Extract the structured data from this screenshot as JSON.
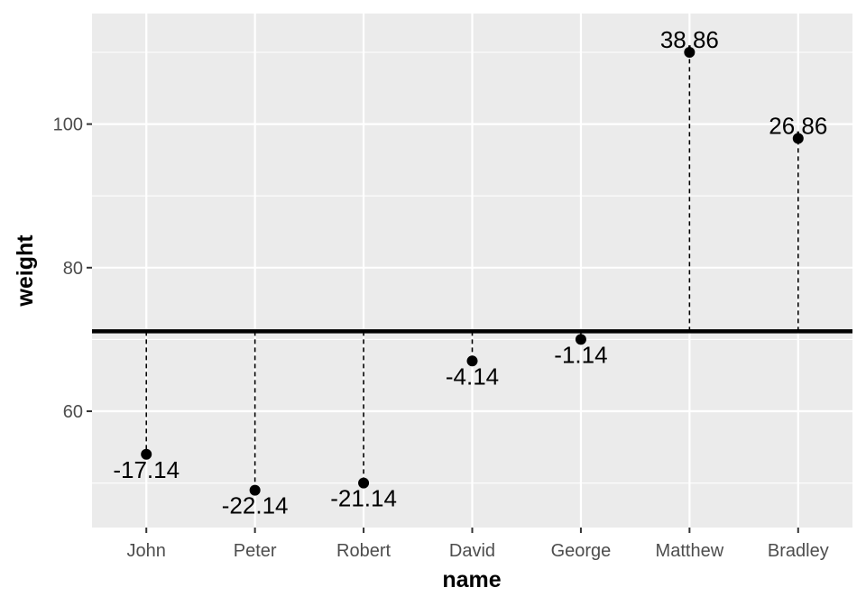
{
  "chart_data": {
    "type": "scatter",
    "subtype": "lollipop-deviation",
    "xlabel": "name",
    "ylabel": "weight",
    "categories": [
      "John",
      "Peter",
      "Robert",
      "David",
      "George",
      "Matthew",
      "Bradley"
    ],
    "values": [
      54,
      49,
      50,
      67,
      70,
      110,
      98
    ],
    "labels": [
      "-17.14",
      "-22.14",
      "-21.14",
      "-4.14",
      "-1.14",
      "38.86",
      "26.86"
    ],
    "reference_line": 71.14,
    "ylim": [
      43.8,
      115.4
    ],
    "yticks": [
      60,
      80,
      100
    ],
    "grid": true,
    "colors": {
      "panel": "#ebebeb",
      "grid": "#ffffff",
      "point": "#000000",
      "tick_text": "#4d4d4d"
    }
  }
}
